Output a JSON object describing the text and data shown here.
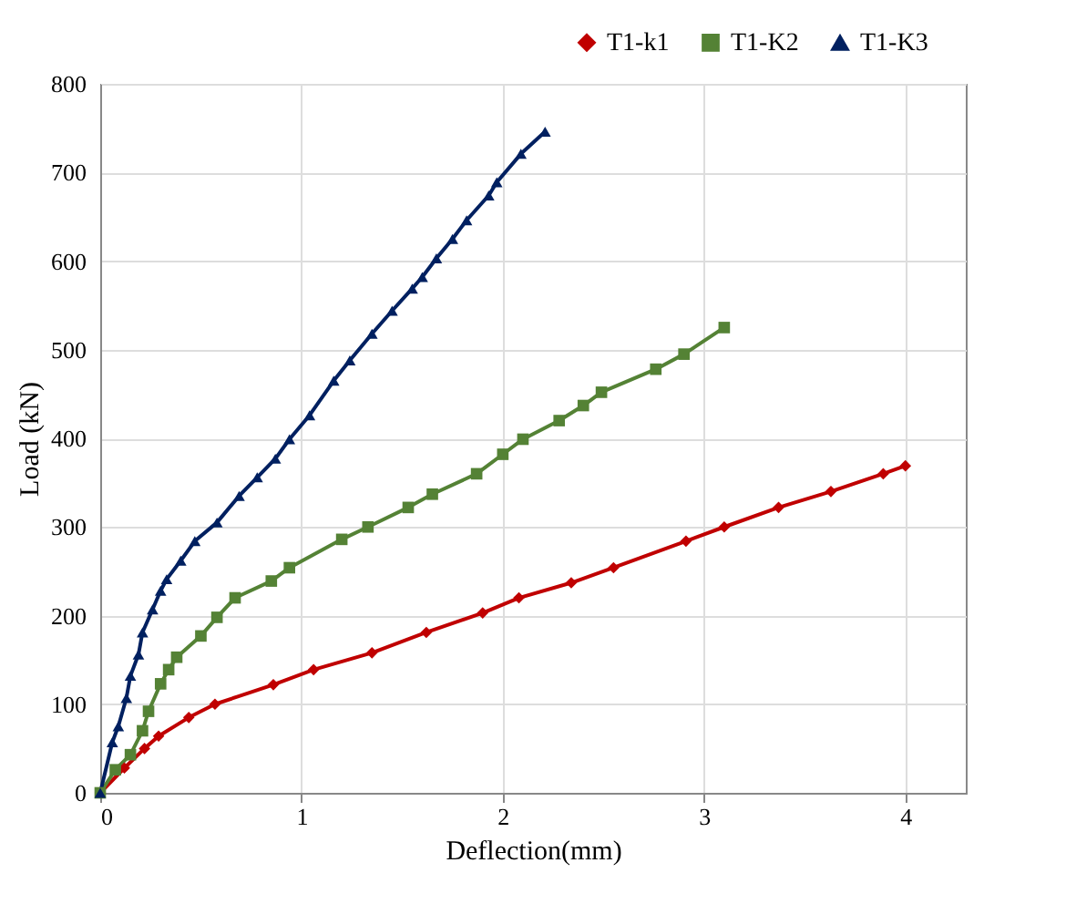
{
  "chart_data": {
    "type": "line",
    "xlabel": "Deflection(mm)",
    "ylabel": "Load (kN)",
    "xlim": [
      0,
      4.3
    ],
    "xticks": [
      0,
      1,
      2,
      3,
      4
    ],
    "ylim": [
      0,
      800
    ],
    "yticks": [
      0,
      100,
      200,
      300,
      400,
      500,
      600,
      700,
      800
    ],
    "grid": true,
    "legend": "top right",
    "line_style": "solid",
    "series": [
      {
        "name": "T1-k1",
        "color": "#c00000",
        "marker": "diamond",
        "x": [
          0,
          0.12,
          0.22,
          0.29,
          0.44,
          0.57,
          0.86,
          1.06,
          1.35,
          1.62,
          1.9,
          2.08,
          2.34,
          2.55,
          2.91,
          3.1,
          3.37,
          3.63,
          3.89,
          4.0
        ],
        "values": [
          0,
          28,
          50,
          64,
          85,
          100,
          122,
          139,
          158,
          181,
          203,
          220,
          237,
          254,
          284,
          300,
          322,
          340,
          360,
          369
        ]
      },
      {
        "name": "T1-K2",
        "color": "#548235",
        "marker": "square",
        "x": [
          0,
          0.075,
          0.15,
          0.21,
          0.24,
          0.3,
          0.34,
          0.38,
          0.5,
          0.58,
          0.67,
          0.85,
          0.94,
          1.2,
          1.33,
          1.53,
          1.65,
          1.87,
          2.0,
          2.1,
          2.28,
          2.4,
          2.49,
          2.76,
          2.9,
          3.1
        ],
        "values": [
          0,
          26,
          43,
          70,
          92,
          123,
          139,
          153,
          177,
          198,
          220,
          239,
          254,
          286,
          300,
          322,
          337,
          360,
          382,
          399,
          420,
          437,
          452,
          478,
          495,
          525
        ]
      },
      {
        "name": "T1-K3",
        "color": "#002060",
        "marker": "triangle",
        "x": [
          0,
          0.06,
          0.09,
          0.13,
          0.15,
          0.19,
          0.21,
          0.26,
          0.3,
          0.33,
          0.4,
          0.47,
          0.58,
          0.69,
          0.78,
          0.87,
          0.94,
          1.04,
          1.16,
          1.24,
          1.35,
          1.45,
          1.55,
          1.6,
          1.67,
          1.75,
          1.82,
          1.93,
          1.97,
          2.09,
          2.21
        ],
        "values": [
          0,
          57,
          75,
          107,
          132,
          156,
          181,
          207,
          228,
          241,
          262,
          284,
          305,
          335,
          356,
          377,
          399,
          426,
          465,
          488,
          518,
          544,
          569,
          582,
          603,
          625,
          646,
          674,
          689,
          721,
          746
        ]
      }
    ]
  }
}
